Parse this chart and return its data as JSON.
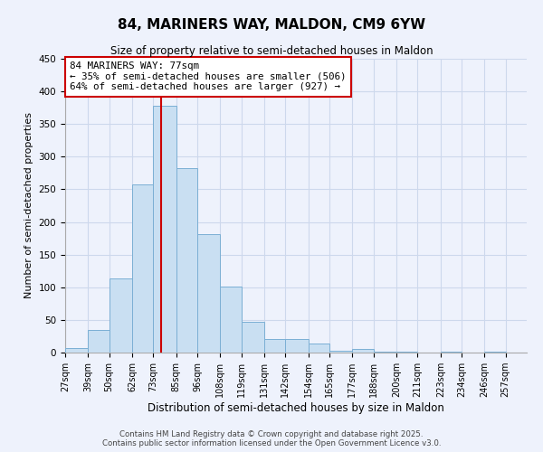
{
  "title": "84, MARINERS WAY, MALDON, CM9 6YW",
  "subtitle": "Size of property relative to semi-detached houses in Maldon",
  "xlabel": "Distribution of semi-detached houses by size in Maldon",
  "ylabel": "Number of semi-detached properties",
  "bin_labels": [
    "27sqm",
    "39sqm",
    "50sqm",
    "62sqm",
    "73sqm",
    "85sqm",
    "96sqm",
    "108sqm",
    "119sqm",
    "131sqm",
    "142sqm",
    "154sqm",
    "165sqm",
    "177sqm",
    "188sqm",
    "200sqm",
    "211sqm",
    "223sqm",
    "234sqm",
    "246sqm",
    "257sqm"
  ],
  "bin_edges": [
    27,
    39,
    50,
    62,
    73,
    85,
    96,
    108,
    119,
    131,
    142,
    154,
    165,
    177,
    188,
    200,
    211,
    223,
    234,
    246,
    257
  ],
  "values": [
    7,
    34,
    114,
    258,
    378,
    282,
    181,
    101,
    47,
    21,
    21,
    14,
    3,
    6,
    1,
    1,
    0,
    1,
    0,
    1
  ],
  "bar_color": "#c9dff2",
  "bar_edge_color": "#7bafd4",
  "grid_color": "#cdd8ec",
  "background_color": "#eef2fc",
  "vline_x": 77,
  "vline_color": "#cc0000",
  "annotation_title": "84 MARINERS WAY: 77sqm",
  "annotation_line1": "← 35% of semi-detached houses are smaller (506)",
  "annotation_line2": "64% of semi-detached houses are larger (927) →",
  "annotation_box_color": "white",
  "annotation_box_edge": "#cc0000",
  "ylim": [
    0,
    450
  ],
  "yticks": [
    0,
    50,
    100,
    150,
    200,
    250,
    300,
    350,
    400,
    450
  ],
  "footer1": "Contains HM Land Registry data © Crown copyright and database right 2025.",
  "footer2": "Contains public sector information licensed under the Open Government Licence v3.0."
}
